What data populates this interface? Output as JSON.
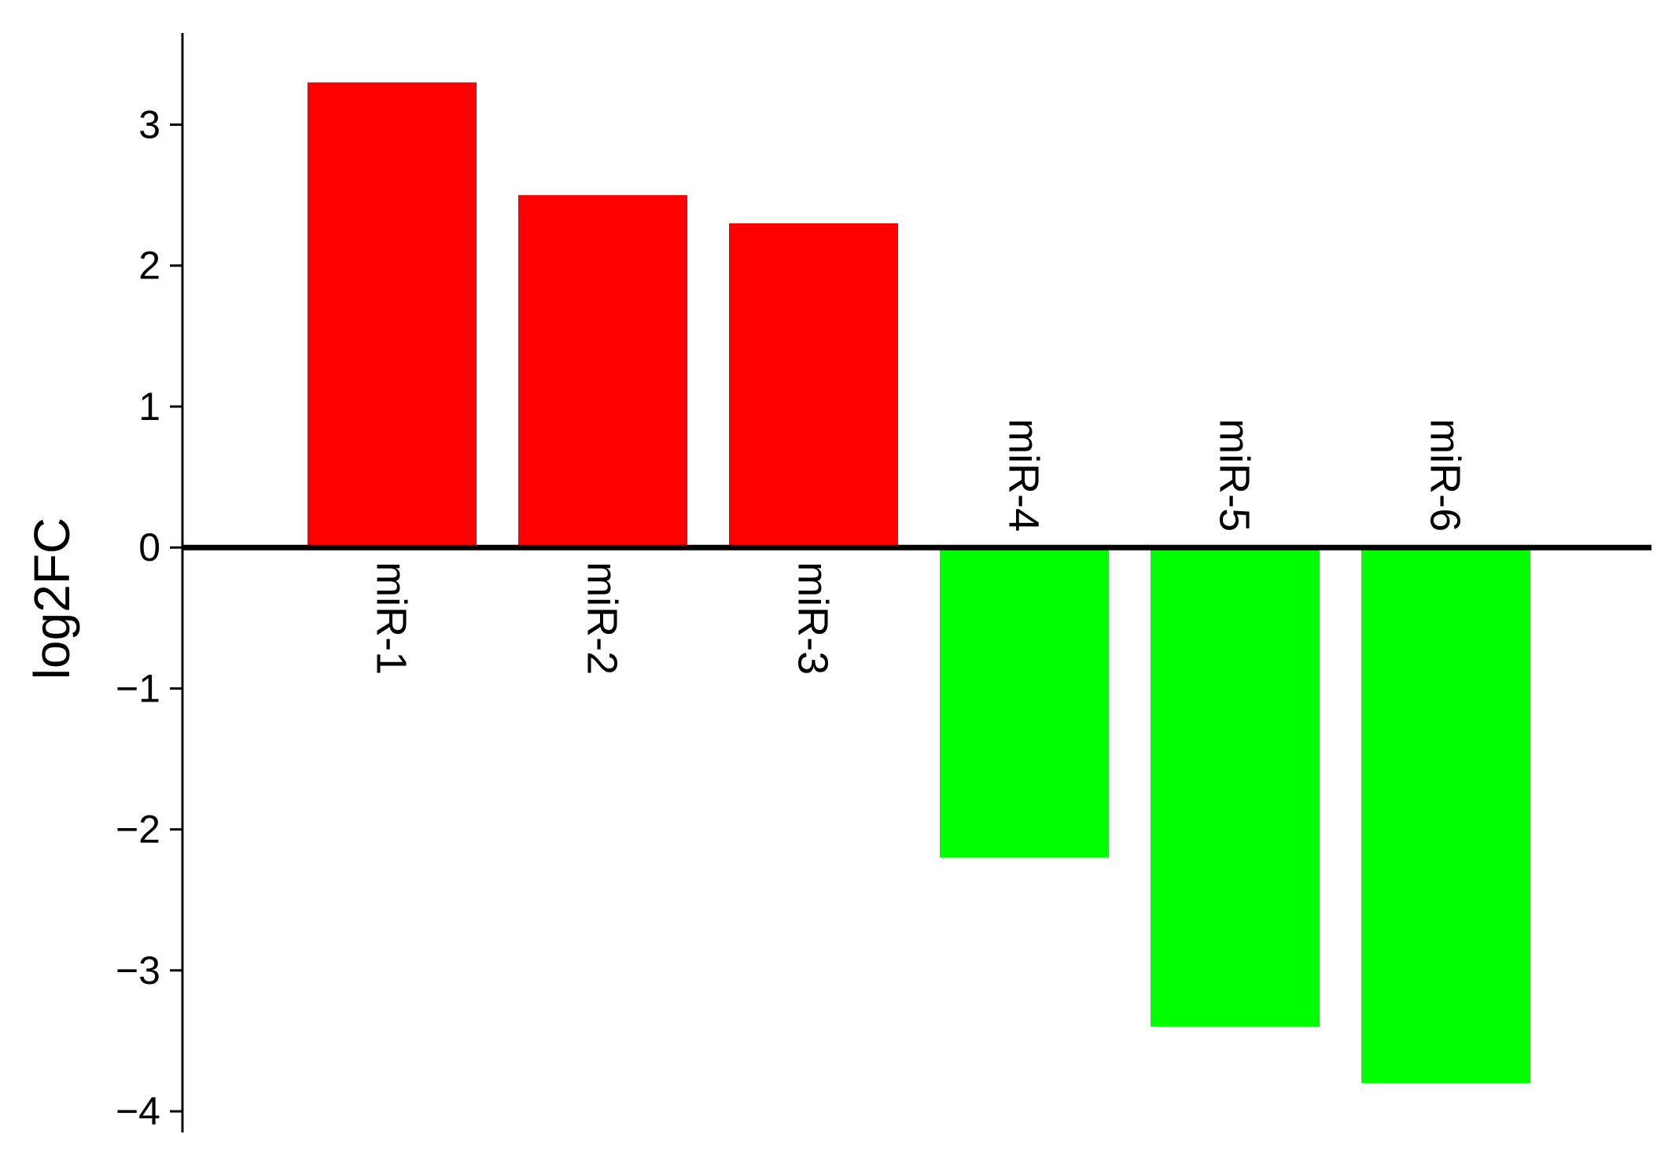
{
  "chart_data": {
    "type": "bar",
    "categories": [
      "miR-1",
      "miR-2",
      "miR-3",
      "miR-4",
      "miR-5",
      "miR-6"
    ],
    "values": [
      3.3,
      2.5,
      2.3,
      -2.2,
      -3.4,
      -3.8
    ],
    "ylabel": "log2FC",
    "ylim": [
      -4.15,
      3.65
    ],
    "yticks": [
      {
        "value": 3,
        "label": "3"
      },
      {
        "value": 2,
        "label": "2"
      },
      {
        "value": 1,
        "label": "1"
      },
      {
        "value": 0,
        "label": "0"
      },
      {
        "value": -1,
        "label": "−1"
      },
      {
        "value": -2,
        "label": "−2"
      },
      {
        "value": -3,
        "label": "−3"
      },
      {
        "value": -4,
        "label": "−4"
      }
    ],
    "colors": {
      "positive": "#ff0000",
      "negative": "#00ff00"
    },
    "grid": false,
    "legend": "none"
  }
}
